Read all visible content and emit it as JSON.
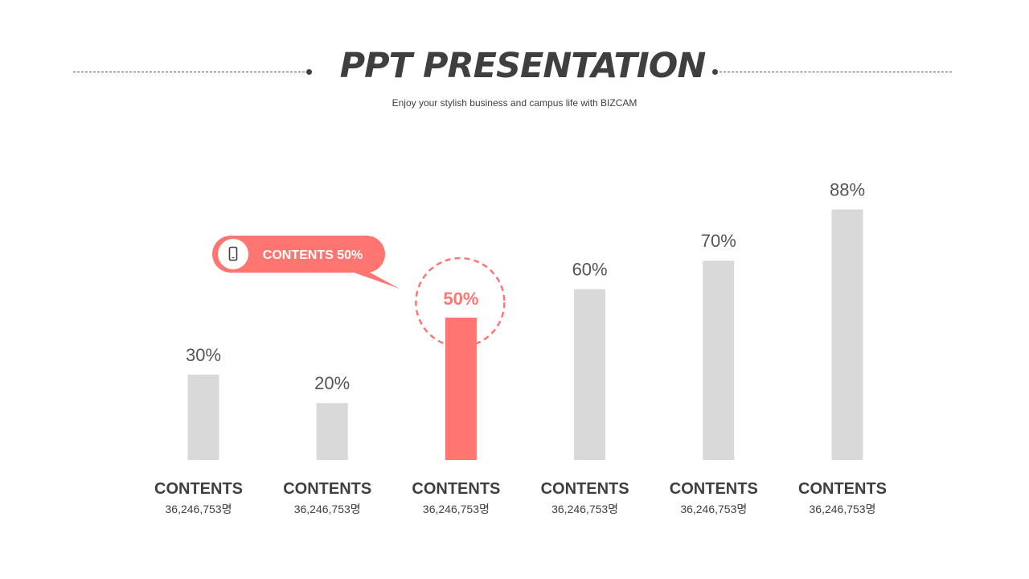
{
  "header": {
    "title": "PPT PRESENTATION",
    "subtitle": "Enjoy your stylish business and campus life with BIZCAM"
  },
  "callout": {
    "text": "CONTENTS 50%",
    "icon": "smartphone-icon"
  },
  "colors": {
    "bar": "#d9d9d9",
    "highlight": "#ff7571",
    "text": "#404040"
  },
  "chart_data": {
    "type": "bar",
    "categories": [
      "CONTENTS",
      "CONTENTS",
      "CONTENTS",
      "CONTENTS",
      "CONTENTS",
      "CONTENTS"
    ],
    "sublabels": [
      "36,246,753명",
      "36,246,753명",
      "36,246,753명",
      "36,246,753명",
      "36,246,753명",
      "36,246,753명"
    ],
    "values": [
      30,
      20,
      50,
      60,
      70,
      88
    ],
    "value_labels": [
      "30%",
      "20%",
      "50%",
      "60%",
      "70%",
      "88%"
    ],
    "highlight_index": 2,
    "ylim": [
      0,
      100
    ],
    "grid": false
  }
}
